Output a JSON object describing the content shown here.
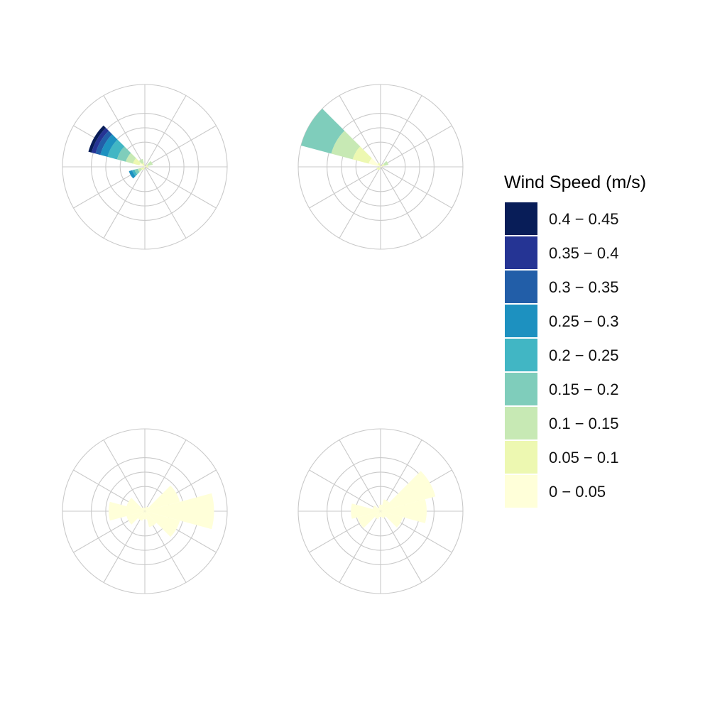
{
  "chart_data": {
    "type": "windrose",
    "facets": 4,
    "directions": 12,
    "grid_rings": 4,
    "grid": true,
    "legend": {
      "title": "Wind Speed (m/s)",
      "placement": "right",
      "entries": [
        {
          "label": "0.4 − 0.45",
          "color": "#081d58"
        },
        {
          "label": "0.35 − 0.4",
          "color": "#253494"
        },
        {
          "label": "0.3 − 0.35",
          "color": "#225ea8"
        },
        {
          "label": "0.25 − 0.3",
          "color": "#1d91c0"
        },
        {
          "label": "0.2 − 0.25",
          "color": "#41b6c4"
        },
        {
          "label": "0.15 − 0.2",
          "color": "#7fcdbb"
        },
        {
          "label": "0.1 − 0.15",
          "color": "#c7e9b4"
        },
        {
          "label": "0.05 − 0.1",
          "color": "#edf8b1"
        },
        {
          "label": "0 − 0.05",
          "color": "#ffffd9"
        }
      ]
    },
    "panels": [
      {
        "wedges": [
          {
            "direction": 300,
            "stack": [
              0.07,
              0.15,
              0.24,
              0.35,
              0.47,
              0.56,
              0.62,
              0.67,
              0.71
            ]
          },
          {
            "direction": 330,
            "stack": [
              0.02,
              0.05,
              0.1
            ]
          },
          {
            "direction": 60,
            "stack": [
              0.02,
              0.04,
              0.1
            ]
          },
          {
            "direction": 90,
            "stack": [
              0.02,
              0.04
            ]
          },
          {
            "direction": 240,
            "stack": [
              0.02,
              0.05,
              0.09,
              0.13,
              0.16,
              0.2
            ]
          },
          {
            "direction": 210,
            "stack": [
              0.02,
              0.04
            ]
          }
        ]
      },
      {
        "wedges": [
          {
            "direction": 300,
            "stack": [
              0.15,
              0.35,
              0.62,
              1.0
            ]
          },
          {
            "direction": 330,
            "stack": [
              0.02,
              0.05
            ]
          },
          {
            "direction": 60,
            "stack": [
              0.02,
              0.05,
              0.1
            ]
          },
          {
            "direction": 90,
            "stack": [
              0.02
            ]
          },
          {
            "direction": 240,
            "stack": [
              0.02,
              0.05
            ]
          },
          {
            "direction": 210,
            "stack": [
              0.02,
              0.04
            ]
          }
        ]
      },
      {
        "wedges": [
          {
            "direction": 90,
            "stack": [
              0.84
            ]
          },
          {
            "direction": 60,
            "stack": [
              0.44
            ]
          },
          {
            "direction": 120,
            "stack": [
              0.44
            ]
          },
          {
            "direction": 270,
            "stack": [
              0.44
            ]
          },
          {
            "direction": 240,
            "stack": [
              0.23
            ]
          },
          {
            "direction": 300,
            "stack": [
              0.23
            ]
          },
          {
            "direction": 150,
            "stack": [
              0.2
            ]
          },
          {
            "direction": 210,
            "stack": [
              0.12
            ]
          },
          {
            "direction": 180,
            "stack": [
              0.1
            ]
          },
          {
            "direction": 30,
            "stack": [
              0.06
            ]
          },
          {
            "direction": 330,
            "stack": [
              0.05
            ]
          },
          {
            "direction": 0,
            "stack": [
              0.04
            ]
          }
        ]
      },
      {
        "wedges": [
          {
            "direction": 60,
            "stack": [
              0.69
            ]
          },
          {
            "direction": 90,
            "stack": [
              0.56
            ]
          },
          {
            "direction": 120,
            "stack": [
              0.28
            ]
          },
          {
            "direction": 270,
            "stack": [
              0.36
            ]
          },
          {
            "direction": 240,
            "stack": [
              0.29
            ]
          },
          {
            "direction": 300,
            "stack": [
              0.1
            ]
          },
          {
            "direction": 30,
            "stack": [
              0.15
            ]
          },
          {
            "direction": 0,
            "stack": [
              0.08
            ]
          },
          {
            "direction": 330,
            "stack": [
              0.05
            ]
          },
          {
            "direction": 150,
            "stack": [
              0.09
            ]
          },
          {
            "direction": 180,
            "stack": [
              0.07
            ]
          },
          {
            "direction": 210,
            "stack": [
              0.1
            ]
          }
        ]
      }
    ]
  }
}
